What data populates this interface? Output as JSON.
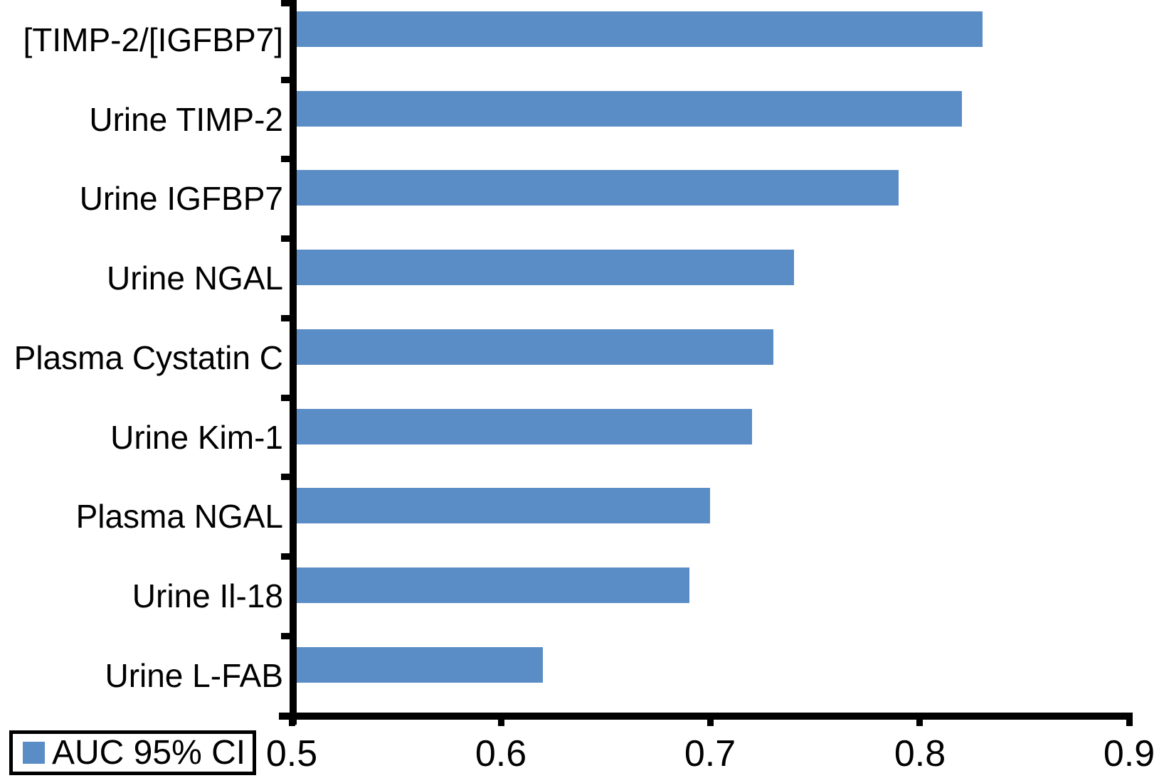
{
  "chart_data": {
    "type": "bar",
    "orientation": "horizontal",
    "categories": [
      "[TIMP-2/[IGFBP7]",
      "Urine TIMP-2",
      "Urine IGFBP7",
      "Urine NGAL",
      "Plasma Cystatin C",
      "Urine Kim-1",
      "Plasma NGAL",
      "Urine Il-18",
      "Urine L-FAB"
    ],
    "series_name": "AUC 95% CI",
    "values": [
      0.83,
      0.82,
      0.79,
      0.74,
      0.73,
      0.72,
      0.7,
      0.69,
      0.62
    ],
    "xlim": [
      0.5,
      0.9
    ],
    "x_tick_values": [
      0.5,
      0.6,
      0.7,
      0.8,
      0.9
    ],
    "x_tick_labels": [
      "0.5",
      "0.6",
      "0.7",
      "0.8",
      "0.9"
    ],
    "grid": false,
    "legend": {
      "label": "AUC 95% CI",
      "position": "bottom-left"
    },
    "colors": {
      "bar": "#5A8CC6",
      "axis": "#000000",
      "text": "#000000",
      "background": "#FFFFFF"
    }
  }
}
